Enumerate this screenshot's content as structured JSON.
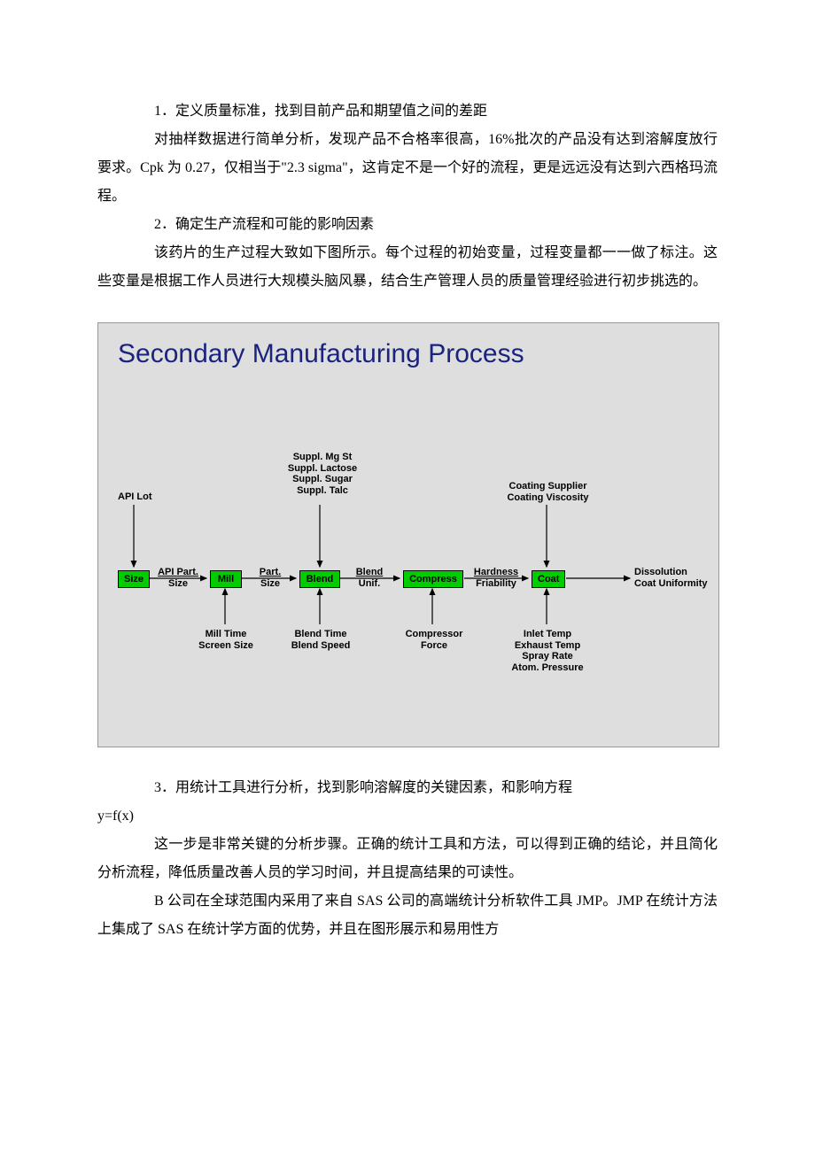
{
  "paragraphs": {
    "p1": "1．定义质量标准，找到目前产品和期望值之间的差距",
    "p2": "对抽样数据进行简单分析，发现产品不合格率很高，16%批次的产品没有达到溶解度放行要求。Cpk 为 0.27，仅相当于\"2.3  sigma\"，这肯定不是一个好的流程，更是远远没有达到六西格玛流程。",
    "p3": "2．确定生产流程和可能的影响因素",
    "p4": "该药片的生产过程大致如下图所示。每个过程的初始变量，过程变量都一一做了标注。这些变量是根据工作人员进行大规模头脑风暴，结合生产管理人员的质量管理经验进行初步挑选的。",
    "p5a": "3．用统计工具进行分析，找到影响溶解度的关键因素，和影响方程",
    "p5b": "y=f(x)",
    "p6": "这一步是非常关键的分析步骤。正确的统计工具和方法，可以得到正确的结论，并且简化分析流程，降低质量改善人员的学习时间，并且提高结果的可读性。",
    "p7": "B 公司在全球范围内采用了来自 SAS 公司的高端统计分析软件工具 JMP。JMP 在统计方法上集成了 SAS 在统计学方面的优势，并且在图形展示和易用性方"
  },
  "diagram": {
    "title": "Secondary Manufacturing Process",
    "background_color": "#dedede",
    "title_color": "#1a237e",
    "title_fontsize": 30,
    "node_color": "#00cc00",
    "node_border": "#000000",
    "arrow_color": "#000000",
    "label_fontsize": 11,
    "nodes": {
      "size": "Size",
      "mill": "Mill",
      "blend": "Blend",
      "compress": "Compress",
      "coat": "Coat"
    },
    "top_labels": {
      "api_lot": "API Lot",
      "suppl": "Suppl. Mg St\nSuppl. Lactose\nSuppl. Sugar\nSuppl. Talc",
      "coating": "Coating Supplier\nCoating Viscosity"
    },
    "edge_labels": {
      "e1a": "API Part.",
      "e1b": "Size",
      "e2a": "Part.",
      "e2b": "Size",
      "e3a": "Blend",
      "e3b": "Unif.",
      "e4a": "Hardness",
      "e4b": "Friability",
      "out1": "Dissolution",
      "out2": "Coat Uniformity"
    },
    "bottom_labels": {
      "mill_b": "Mill Time\nScreen Size",
      "blend_b": "Blend Time\nBlend Speed",
      "compress_b": "Compressor\nForce",
      "coat_b": "Inlet Temp\nExhaust Temp\nSpray Rate\nAtom. Pressure"
    }
  }
}
